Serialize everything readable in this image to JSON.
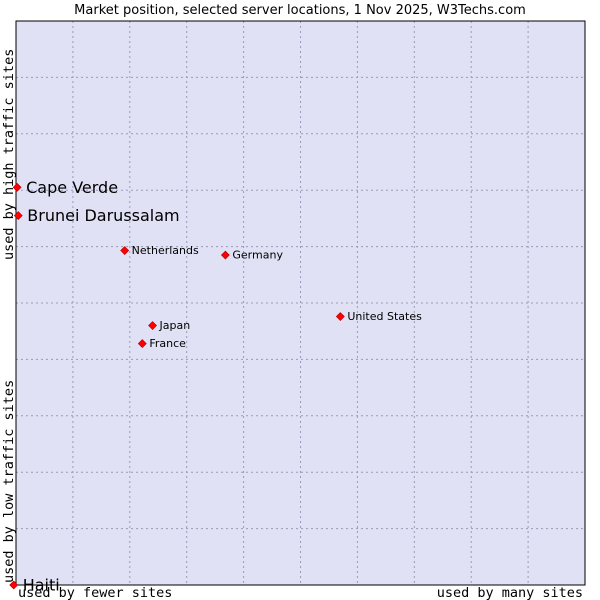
{
  "colors": {
    "plot_bg": "#e1e1f5",
    "marker": "#ff0000",
    "marker_stroke": "#b00000",
    "frame": "#000000"
  },
  "chart_data": {
    "type": "scatter",
    "title": "Market position, selected server locations, 1 Nov 2025, W3Techs.com",
    "xlabel_left": "used by fewer sites",
    "xlabel_right": "used by many sites",
    "ylabel_bottom": "used by low traffic sites",
    "ylabel_top": "used by high traffic sites",
    "xlim": [
      0,
      100
    ],
    "ylim": [
      0,
      100
    ],
    "grid": true,
    "points": [
      {
        "label": "Cape Verde",
        "x": 0.2,
        "y": 70.5,
        "highlight": true
      },
      {
        "label": "Brunei Darussalam",
        "x": 0.4,
        "y": 65.5,
        "highlight": true
      },
      {
        "label": "Netherlands",
        "x": 19.1,
        "y": 59.3,
        "highlight": false
      },
      {
        "label": "Germany",
        "x": 36.8,
        "y": 58.5,
        "highlight": false
      },
      {
        "label": "United States",
        "x": 57.0,
        "y": 47.6,
        "highlight": false
      },
      {
        "label": "Japan",
        "x": 24.0,
        "y": 46.0,
        "highlight": false
      },
      {
        "label": "France",
        "x": 22.2,
        "y": 42.8,
        "highlight": false
      },
      {
        "label": "Haiti",
        "x": -0.4,
        "y": 0.0,
        "highlight": true
      }
    ]
  }
}
